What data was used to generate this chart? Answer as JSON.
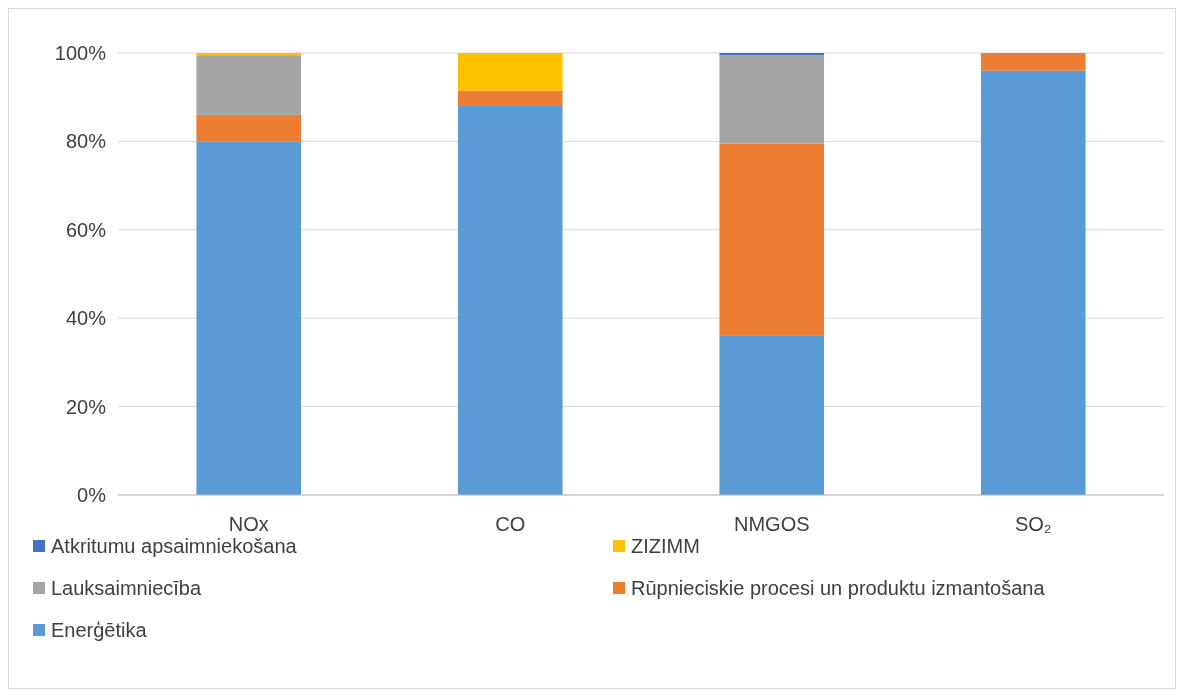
{
  "chart_data": {
    "type": "bar",
    "stacked": true,
    "categories": [
      "NOx",
      "CO",
      "NMGOS",
      "SO₂"
    ],
    "series": [
      {
        "name": "Enerģētika",
        "color": "#5b9bd5",
        "values": [
          80,
          88,
          36,
          96
        ]
      },
      {
        "name": "Rūpnieciskie procesi un produktu izmantošana",
        "color": "#ed7d31",
        "values": [
          6,
          3.5,
          43.5,
          4
        ]
      },
      {
        "name": "Lauksaimniecība",
        "color": "#a5a5a5",
        "values": [
          13.5,
          0,
          20,
          0
        ]
      },
      {
        "name": "ZIZIMM",
        "color": "#ffc000",
        "values": [
          0.5,
          8.5,
          0,
          0
        ]
      },
      {
        "name": "Atkritumu apsaimniekošana",
        "color": "#4472c4",
        "values": [
          0,
          0,
          0.5,
          0
        ]
      }
    ],
    "ylim": [
      0,
      100
    ],
    "yticks": [
      {
        "value": 0,
        "label": "0%"
      },
      {
        "value": 20,
        "label": "20%"
      },
      {
        "value": 40,
        "label": "40%"
      },
      {
        "value": 60,
        "label": "60%"
      },
      {
        "value": 80,
        "label": "80%"
      },
      {
        "value": 100,
        "label": "100%"
      }
    ],
    "grid": "y",
    "legend": "bottom"
  }
}
